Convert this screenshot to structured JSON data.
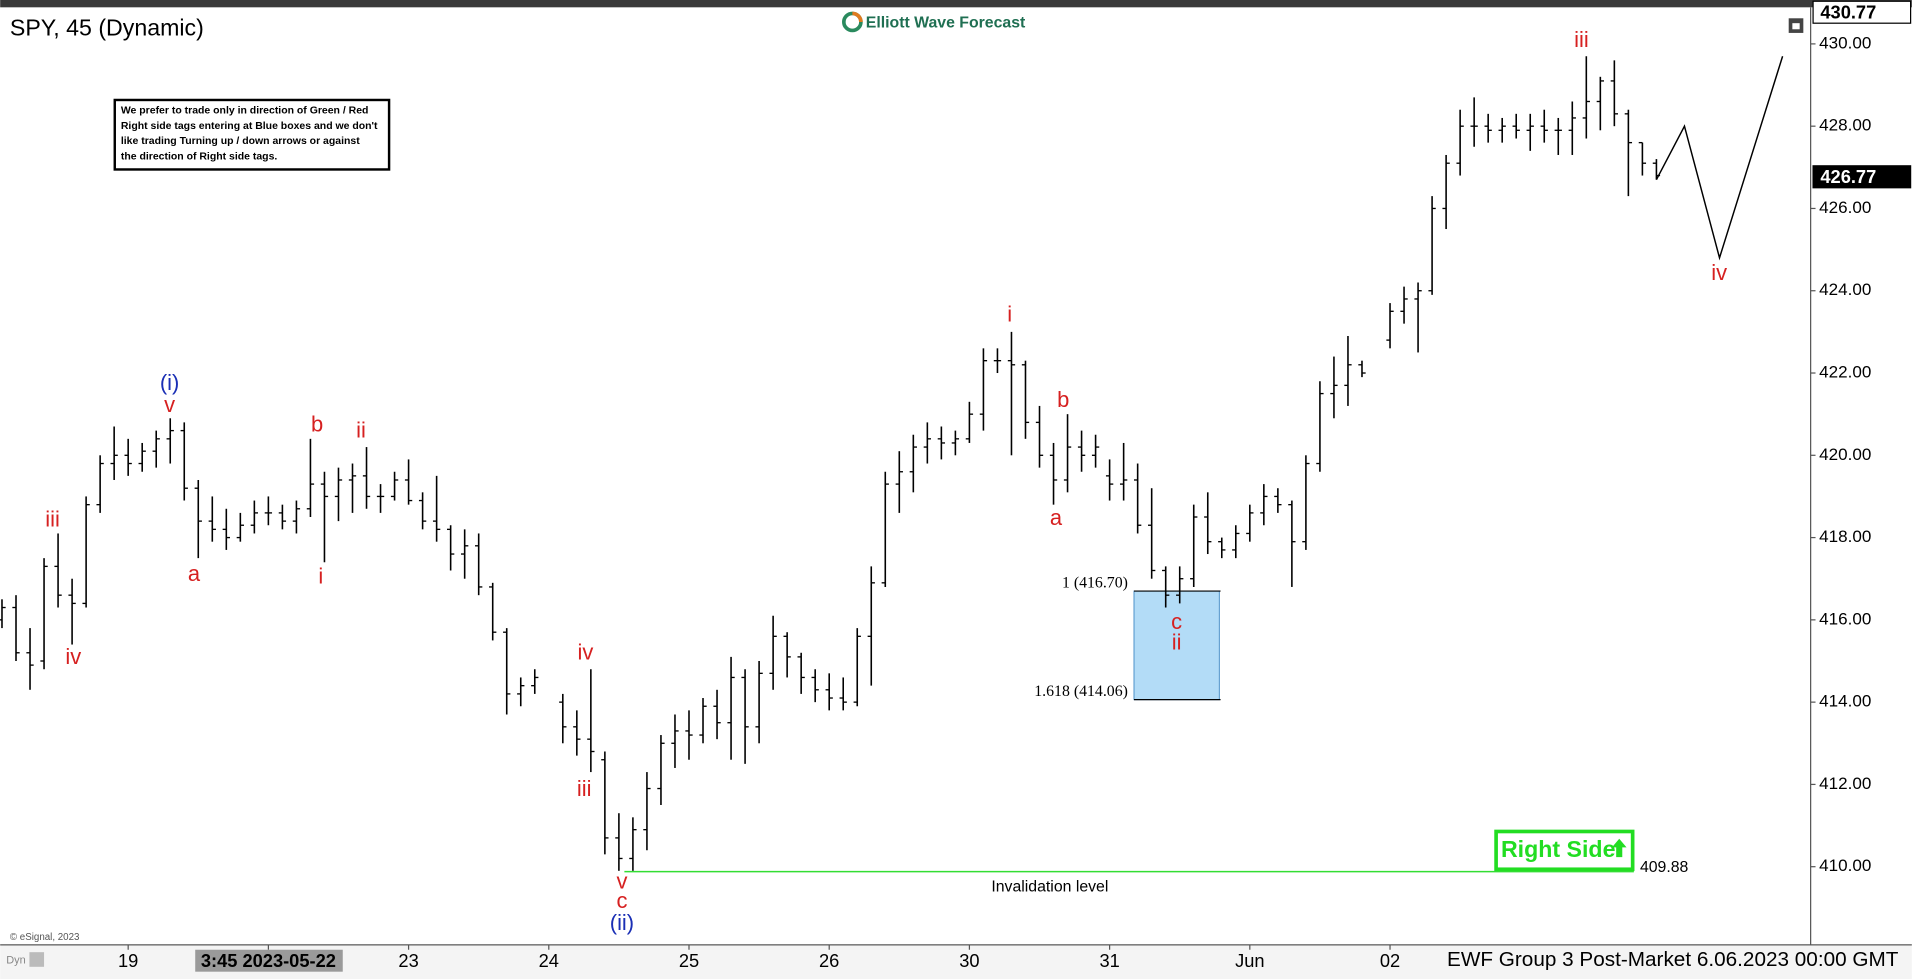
{
  "chart_data": {
    "type": "ohlc",
    "title": "SPY, 45 (Dynamic)",
    "logo": "Elliott Wave Forecast",
    "note": [
      "We prefer to trade only in direction of Green / Red",
      "Right side tags entering at Blue boxes and we don't",
      "like trading Turning up / down arrows or against",
      "the direction of Right side tags."
    ],
    "footer": "EWF Group 3 Post-Market 6.06.2023 00:00 GMT",
    "source": "© eSignal, 2023",
    "mode": "Dyn",
    "color": "#000000",
    "x": [
      1,
      2,
      3,
      4,
      5,
      6,
      7,
      8,
      9,
      10,
      11,
      12,
      13,
      14,
      15,
      16,
      17,
      18,
      19,
      20,
      21,
      22,
      23,
      24,
      25,
      26,
      27,
      28,
      29,
      30,
      31,
      32,
      33,
      34,
      35,
      36,
      37,
      38,
      39,
      41,
      42,
      43,
      44,
      45,
      46,
      47,
      48,
      49,
      50,
      51,
      52,
      53,
      54,
      55,
      56,
      57,
      58,
      59,
      60,
      61,
      62,
      63,
      64,
      65,
      66,
      67,
      68,
      69,
      70,
      71,
      72,
      73,
      74,
      75,
      76,
      77,
      78,
      79,
      80,
      81,
      82,
      83,
      84,
      85,
      86,
      87,
      88,
      89,
      90,
      91,
      92,
      93,
      94,
      95,
      96,
      97,
      98,
      100,
      101,
      102,
      103,
      104,
      105,
      106,
      107,
      108,
      109,
      110,
      111,
      112,
      113,
      114,
      115,
      116,
      117,
      118,
      119
    ],
    "open": [
      416.0,
      416.3,
      415.2,
      415.0,
      417.3,
      416.6,
      416.4,
      418.8,
      419.8,
      420.0,
      419.8,
      420.1,
      420.4,
      420.6,
      419.2,
      418.4,
      418.2,
      418.0,
      418.3,
      418.6,
      418.6,
      418.4,
      418.7,
      419.3,
      419.0,
      419.4,
      419.5,
      419.0,
      419.0,
      419.4,
      418.9,
      418.4,
      418.2,
      417.6,
      417.8,
      416.8,
      415.7,
      414.2,
      414.4,
      414.0,
      413.4,
      413.1,
      412.6,
      410.7,
      410.2,
      410.9,
      411.9,
      413.0,
      413.3,
      413.2,
      413.9,
      413.5,
      414.6,
      413.4,
      414.7,
      415.6,
      415.1,
      414.6,
      414.3,
      414.1,
      414.0,
      415.6,
      416.9,
      419.3,
      419.6,
      420.2,
      420.4,
      420.3,
      420.4,
      421.0,
      422.3,
      422.3,
      422.2,
      420.8,
      420.0,
      419.4,
      420.2,
      420.0,
      419.5,
      419.3,
      419.4,
      418.3,
      417.2,
      416.6,
      417.0,
      418.5,
      417.9,
      417.7,
      418.1,
      418.6,
      419.0,
      418.8,
      417.9,
      419.8,
      421.5,
      421.7,
      422.2,
      422.8,
      423.5,
      423.8,
      424.0,
      426.0,
      427.1,
      428.0,
      428.0,
      427.9,
      428.0,
      427.9,
      428.0,
      427.9,
      427.9,
      428.2,
      428.6,
      429.1,
      428.3,
      427.6,
      427.1
    ],
    "high": [
      416.5,
      416.6,
      415.8,
      417.5,
      418.1,
      417.0,
      419.0,
      420.0,
      420.7,
      420.4,
      420.3,
      420.6,
      420.9,
      420.8,
      419.4,
      419.0,
      418.7,
      418.6,
      418.9,
      419.0,
      418.8,
      418.9,
      420.4,
      419.6,
      419.7,
      419.8,
      420.2,
      419.3,
      419.6,
      419.9,
      419.1,
      419.5,
      418.3,
      418.2,
      418.1,
      416.9,
      415.8,
      414.6,
      414.8,
      414.2,
      413.8,
      414.8,
      412.8,
      411.3,
      411.2,
      412.3,
      413.2,
      413.7,
      413.8,
      414.1,
      414.3,
      415.1,
      414.8,
      415.0,
      416.1,
      415.7,
      415.2,
      414.8,
      414.7,
      414.6,
      415.8,
      417.3,
      419.6,
      420.1,
      420.5,
      420.8,
      420.7,
      420.6,
      421.3,
      422.6,
      422.6,
      423.0,
      422.3,
      421.2,
      420.3,
      421.0,
      420.6,
      420.5,
      419.9,
      420.3,
      419.8,
      419.2,
      417.3,
      417.3,
      418.8,
      419.1,
      418.0,
      418.3,
      418.8,
      419.3,
      419.2,
      418.9,
      420.0,
      421.8,
      422.4,
      422.9,
      422.3,
      423.7,
      424.1,
      424.2,
      426.3,
      427.3,
      428.4,
      428.7,
      428.3,
      428.2,
      428.3,
      428.3,
      428.4,
      428.2,
      428.6,
      429.7,
      429.2,
      429.6,
      428.4,
      427.6,
      427.2
    ],
    "low": [
      415.8,
      415.0,
      414.3,
      414.8,
      416.3,
      415.4,
      416.3,
      418.6,
      419.4,
      419.5,
      419.6,
      419.7,
      419.8,
      418.9,
      417.5,
      417.9,
      417.7,
      417.9,
      418.1,
      418.3,
      418.2,
      418.1,
      418.5,
      417.4,
      418.4,
      418.6,
      418.7,
      418.6,
      418.9,
      418.8,
      418.2,
      417.9,
      417.2,
      417.0,
      416.6,
      415.5,
      413.7,
      413.9,
      414.2,
      413.0,
      412.7,
      412.3,
      410.3,
      409.9,
      409.9,
      410.4,
      411.5,
      412.4,
      412.6,
      413.0,
      413.1,
      412.6,
      412.5,
      413.0,
      414.3,
      414.6,
      414.2,
      414.0,
      413.8,
      413.8,
      413.9,
      414.4,
      416.8,
      418.6,
      419.1,
      419.8,
      419.9,
      420.0,
      420.3,
      420.6,
      422.0,
      420.0,
      420.4,
      419.7,
      418.8,
      419.1,
      419.6,
      419.7,
      418.9,
      418.9,
      418.1,
      417.0,
      416.3,
      416.4,
      416.8,
      417.6,
      417.5,
      417.5,
      417.9,
      418.3,
      418.6,
      416.8,
      417.7,
      419.6,
      420.9,
      421.2,
      421.9,
      422.6,
      423.2,
      422.5,
      423.9,
      425.5,
      426.8,
      427.5,
      427.6,
      427.6,
      427.7,
      427.4,
      427.6,
      427.3,
      427.3,
      427.7,
      427.9,
      428.0,
      426.3,
      426.8,
      426.7
    ],
    "close": [
      416.3,
      415.2,
      414.9,
      417.3,
      416.6,
      416.4,
      418.8,
      419.8,
      420.0,
      419.8,
      420.1,
      420.4,
      420.6,
      419.2,
      418.4,
      418.2,
      418.0,
      418.3,
      418.6,
      418.6,
      418.4,
      418.7,
      419.3,
      419.0,
      419.4,
      419.5,
      419.0,
      419.0,
      419.4,
      418.9,
      418.4,
      418.2,
      417.6,
      417.8,
      416.8,
      415.7,
      414.2,
      414.4,
      414.6,
      413.4,
      413.1,
      412.8,
      410.7,
      410.2,
      410.9,
      411.9,
      413.0,
      413.3,
      413.2,
      413.9,
      413.5,
      414.6,
      413.4,
      414.7,
      415.6,
      415.1,
      414.6,
      414.3,
      414.1,
      414.0,
      415.6,
      416.9,
      419.3,
      419.6,
      420.2,
      420.4,
      420.3,
      420.4,
      421.0,
      422.3,
      422.3,
      422.2,
      420.8,
      420.0,
      419.4,
      420.2,
      420.0,
      420.2,
      419.3,
      419.4,
      418.3,
      417.2,
      416.6,
      417.0,
      418.5,
      417.9,
      417.7,
      418.1,
      418.6,
      419.0,
      418.8,
      417.9,
      419.8,
      421.5,
      421.7,
      422.2,
      422.0,
      423.5,
      423.8,
      424.0,
      426.0,
      427.1,
      428.0,
      428.0,
      427.9,
      428.0,
      427.9,
      428.0,
      427.9,
      427.9,
      428.2,
      428.6,
      429.1,
      428.3,
      427.6,
      427.1,
      426.8
    ],
    "xlim": [
      0.87,
      130
    ],
    "xticks": [
      {
        "value": 10,
        "label": "19"
      },
      {
        "value": 20,
        "label": "3:45 2023-05-22"
      },
      {
        "value": 30,
        "label": "23"
      },
      {
        "value": 40,
        "label": "24"
      },
      {
        "value": 50,
        "label": "25"
      },
      {
        "value": 60,
        "label": "26"
      },
      {
        "value": 70,
        "label": "30"
      },
      {
        "value": 80,
        "label": "31"
      },
      {
        "value": 90,
        "label": "Jun"
      },
      {
        "value": 100,
        "label": "02"
      }
    ],
    "ylim": [
      408.1,
      430.83
    ],
    "yticks": [
      {
        "value": 410,
        "label": "410.00"
      },
      {
        "value": 412,
        "label": "412.00"
      },
      {
        "value": 414,
        "label": "414.00"
      },
      {
        "value": 416,
        "label": "416.00"
      },
      {
        "value": 418,
        "label": "418.00"
      },
      {
        "value": 420,
        "label": "420.00"
      },
      {
        "value": 422,
        "label": "422.00"
      },
      {
        "value": 424,
        "label": "424.00"
      },
      {
        "value": 426,
        "label": "426.00"
      },
      {
        "value": 428,
        "label": "428.00"
      },
      {
        "value": 430,
        "label": "430.00"
      }
    ],
    "price_tags": [
      430.77,
      426.77
    ],
    "fib_box": {
      "color": "#b3dcf7",
      "levels": [
        {
          "value": 416.7,
          "label": "1 (416.70)"
        },
        {
          "value": 414.06,
          "label": "1.618 (414.06)"
        }
      ]
    },
    "invalidation": {
      "value": 409.88,
      "label": "Invalidation level",
      "color": "#33dd33"
    },
    "right_side": {
      "label": "Right Side",
      "color": "#22dd22"
    },
    "projection": {
      "x": [
        119,
        121,
        123.5,
        128
      ],
      "values": [
        426.7,
        428.0,
        424.8,
        429.7
      ],
      "color": "#000000"
    },
    "wave_labels": [
      {
        "text": "iii",
        "color": "#d62020"
      },
      {
        "text": "iv",
        "color": "#d62020"
      },
      {
        "text": "v",
        "color": "#d62020"
      },
      {
        "text": "(i)",
        "color": "#1a2fb5"
      },
      {
        "text": "a",
        "color": "#d62020"
      },
      {
        "text": "b",
        "color": "#d62020"
      },
      {
        "text": "i",
        "color": "#d62020"
      },
      {
        "text": "ii",
        "color": "#d62020"
      },
      {
        "text": "iv",
        "color": "#d62020"
      },
      {
        "text": "iii",
        "color": "#d62020"
      },
      {
        "text": "v",
        "color": "#d62020"
      },
      {
        "text": "c",
        "color": "#d62020"
      },
      {
        "text": "(ii)",
        "color": "#1a2fb5"
      },
      {
        "text": "i",
        "color": "#d62020"
      },
      {
        "text": "b",
        "color": "#d62020"
      },
      {
        "text": "a",
        "color": "#d62020"
      },
      {
        "text": "c",
        "color": "#d62020"
      },
      {
        "text": "ii",
        "color": "#d62020"
      },
      {
        "text": "iii",
        "color": "#d62020"
      },
      {
        "text": "iv",
        "color": "#d62020"
      }
    ]
  }
}
